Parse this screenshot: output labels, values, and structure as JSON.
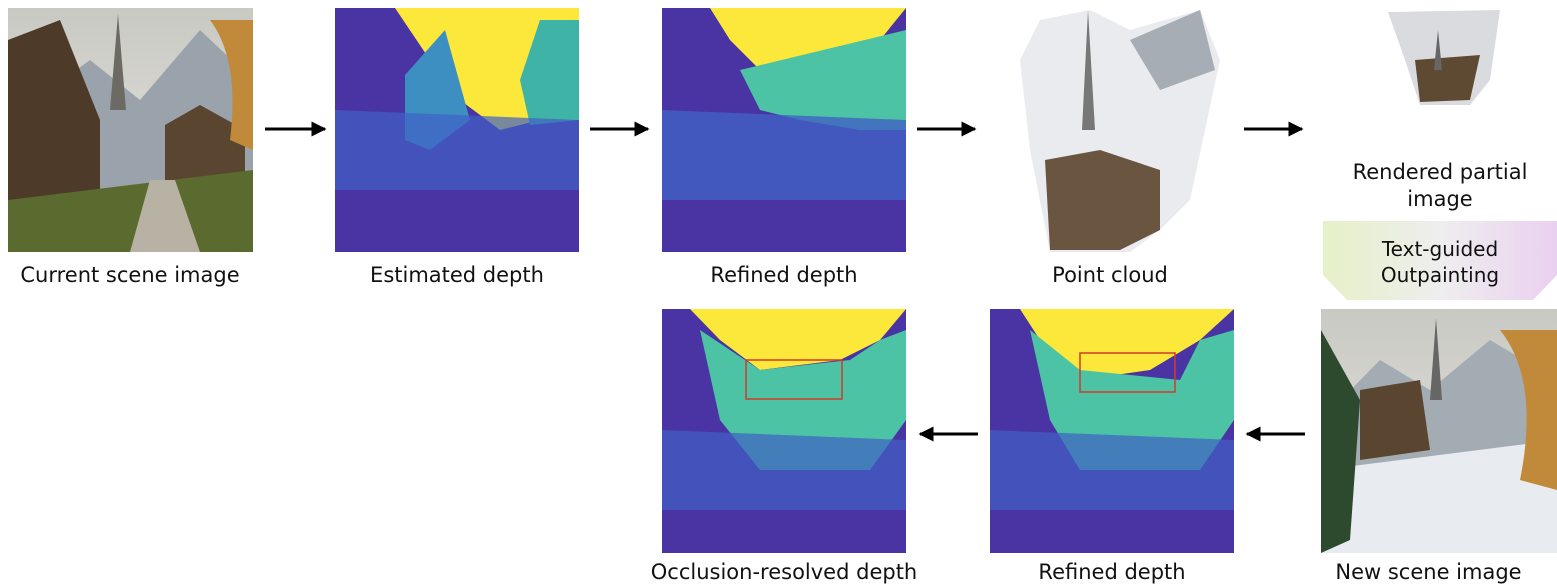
{
  "nodes": [
    {
      "label": "Current scene image"
    },
    {
      "label": "Estimated depth"
    },
    {
      "label": "Refined depth"
    },
    {
      "label": "Point cloud"
    },
    {
      "label": "Rendered partial image"
    },
    {
      "label": "Text-guided Outpainting"
    },
    {
      "label": "New scene image"
    },
    {
      "label": "Refined depth"
    },
    {
      "label": "Occlusion-resolved depth"
    }
  ]
}
